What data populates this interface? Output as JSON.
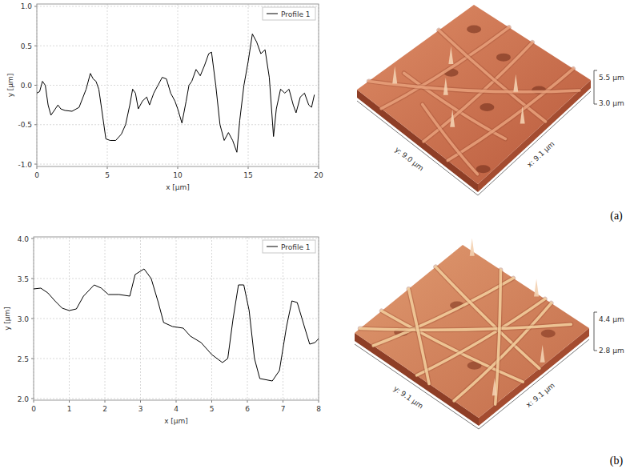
{
  "chart_data": [
    {
      "type": "line",
      "x_label": "x [µm]",
      "y_label": "y [µm]",
      "x": [
        0,
        0.2,
        0.4,
        0.6,
        0.8,
        1.0,
        1.2,
        1.5,
        1.7,
        2.0,
        2.5,
        3.0,
        3.5,
        3.8,
        4.0,
        4.2,
        4.4,
        4.6,
        4.9,
        5.2,
        5.6,
        6.0,
        6.3,
        6.6,
        6.8,
        7.0,
        7.2,
        7.5,
        7.8,
        8.0,
        8.3,
        8.6,
        8.9,
        9.2,
        9.5,
        9.8,
        10.0,
        10.3,
        10.6,
        10.8,
        11.0,
        11.3,
        11.6,
        11.9,
        12.2,
        12.4,
        12.7,
        13.0,
        13.3,
        13.6,
        13.9,
        14.2,
        14.4,
        14.7,
        15.0,
        15.3,
        15.6,
        15.9,
        16.2,
        16.5,
        16.8,
        17.0,
        17.3,
        17.6,
        17.9,
        18.2,
        18.4,
        18.7,
        19.0,
        19.3,
        19.5,
        19.7
      ],
      "series": [
        {
          "name": "Profile 1",
          "color": "#000000",
          "values": [
            -0.1,
            -0.08,
            0.05,
            0.0,
            -0.25,
            -0.38,
            -0.33,
            -0.25,
            -0.3,
            -0.32,
            -0.33,
            -0.28,
            -0.05,
            0.15,
            0.08,
            0.05,
            -0.05,
            -0.3,
            -0.68,
            -0.7,
            -0.7,
            -0.62,
            -0.5,
            -0.25,
            -0.05,
            -0.1,
            -0.3,
            -0.2,
            -0.15,
            -0.25,
            -0.1,
            0.0,
            0.1,
            0.08,
            -0.1,
            -0.2,
            -0.3,
            -0.48,
            -0.2,
            0.0,
            0.05,
            0.2,
            0.12,
            0.25,
            0.4,
            0.42,
            0.0,
            -0.5,
            -0.7,
            -0.6,
            -0.7,
            -0.85,
            -0.45,
            0.0,
            0.3,
            0.65,
            0.55,
            0.4,
            0.45,
            0.1,
            -0.65,
            -0.3,
            -0.05,
            -0.1,
            -0.05,
            -0.25,
            -0.35,
            -0.15,
            -0.1,
            -0.25,
            -0.28,
            -0.12
          ]
        }
      ],
      "xlim": [
        0,
        20
      ],
      "xticks": [
        0,
        5,
        10,
        15,
        20
      ],
      "ylim": [
        -1.03,
        1.03
      ],
      "yticks": [
        {
          "value": -1.0,
          "label": "-1.0"
        },
        -0.5,
        {
          "value": 0.0,
          "label": "0.0"
        },
        0.5,
        {
          "value": 1.0,
          "label": "1.0"
        }
      ],
      "grid": true,
      "legend": "upper right"
    },
    {
      "type": "line",
      "x_label": "x [µm]",
      "y_label": "y [µm]",
      "x": [
        0,
        0.2,
        0.4,
        0.6,
        0.8,
        1.0,
        1.2,
        1.4,
        1.7,
        1.9,
        2.1,
        2.4,
        2.7,
        2.85,
        3.1,
        3.3,
        3.5,
        3.65,
        3.9,
        4.2,
        4.4,
        4.7,
        5.0,
        5.3,
        5.45,
        5.6,
        5.75,
        5.9,
        6.05,
        6.2,
        6.35,
        6.7,
        6.9,
        7.1,
        7.25,
        7.4,
        7.6,
        7.75,
        7.9,
        8.0
      ],
      "series": [
        {
          "name": "Profile 1",
          "color": "#000000",
          "values": [
            3.37,
            3.38,
            3.32,
            3.22,
            3.13,
            3.1,
            3.12,
            3.28,
            3.42,
            3.38,
            3.3,
            3.3,
            3.28,
            3.55,
            3.62,
            3.5,
            3.2,
            2.95,
            2.9,
            2.88,
            2.78,
            2.7,
            2.55,
            2.45,
            2.5,
            3.0,
            3.42,
            3.42,
            3.1,
            2.5,
            2.25,
            2.22,
            2.35,
            2.9,
            3.22,
            3.2,
            2.9,
            2.68,
            2.7,
            2.75
          ]
        }
      ],
      "xlim": [
        0,
        8
      ],
      "xticks": [
        0,
        1,
        2,
        3,
        4,
        5,
        6,
        7,
        8
      ],
      "ylim": [
        1.98,
        4.02
      ],
      "yticks": [
        {
          "value": 2.0,
          "label": "2.0"
        },
        2.5,
        {
          "value": 3.0,
          "label": "3.0"
        },
        3.5,
        {
          "value": 4.0,
          "label": "4.0"
        }
      ],
      "grid": true,
      "legend": "upper right"
    }
  ],
  "panels": [
    {
      "label": "(a)",
      "image": {
        "x_label": "x: 9.1 µm",
        "y_label": "y: 9.0 µm",
        "z_top": "5.5 µm",
        "z_bottom": "3.0 µm"
      }
    },
    {
      "label": "(b)",
      "image": {
        "x_label": "x: 9.1 µm",
        "y_label": "y: 9.1 µm",
        "z_top": "4.4 µm",
        "z_bottom": "2.8 µm"
      }
    }
  ]
}
